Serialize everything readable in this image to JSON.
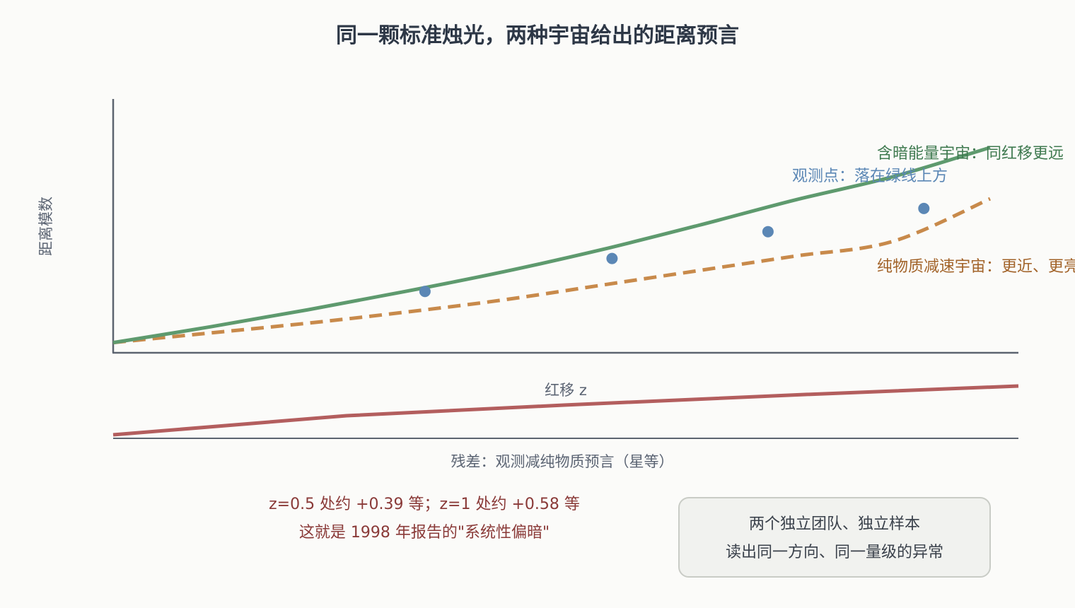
{
  "title": "同一颗标准烛光，两种宇宙给出的距离预言",
  "colors": {
    "background": "#fbfbf9",
    "axis": "#5c6470",
    "dark_energy": "#5e9a6e",
    "matter_only": "#c88a4b",
    "observed": "#5b87b5",
    "residual": "#b35e5e",
    "box_fill": "#f1f2ef",
    "box_border": "#c9ccc6"
  },
  "chart_data": [
    {
      "type": "line",
      "title": "同一颗标准烛光，两种宇宙给出的距离预言",
      "xlabel": "红移 z",
      "ylabel": "距离模数",
      "xlim": [
        0,
        1.125
      ],
      "ylim": [
        0,
        1.0
      ],
      "grid": false,
      "series": [
        {
          "key": "dark_energy",
          "x": [
            0,
            0.125,
            0.25,
            0.375,
            0.5,
            0.625,
            0.75,
            0.875,
            1.0,
            1.125
          ],
          "values": [
            0.03,
            0.095,
            0.165,
            0.24,
            0.32,
            0.41,
            0.51,
            0.615,
            0.71,
            0.83
          ],
          "style": "solid"
        },
        {
          "key": "matter_only",
          "x": [
            0,
            0.125,
            0.25,
            0.375,
            0.5,
            0.625,
            0.75,
            0.875,
            1.0,
            1.125
          ],
          "values": [
            0.03,
            0.07,
            0.11,
            0.155,
            0.205,
            0.265,
            0.325,
            0.385,
            0.445,
            0.62
          ],
          "style": "dashed"
        },
        {
          "key": "observed",
          "type": "scatter",
          "x": [
            0.4,
            0.64,
            0.84,
            1.04
          ],
          "values": [
            0.24,
            0.375,
            0.485,
            0.58
          ]
        }
      ],
      "annotations": [
        {
          "key": "dark_energy",
          "text": "含暗能量宇宙：同红移更远"
        },
        {
          "key": "observed",
          "text": "观测点：落在绿线上方"
        },
        {
          "key": "matter_only",
          "text": "纯物质减速宇宙：更近、更亮"
        }
      ]
    },
    {
      "type": "line",
      "xlabel": "残差：观测减纯物质预言（星等）",
      "xlim": [
        0,
        1.125
      ],
      "ylim": [
        0,
        1.0
      ],
      "series": [
        {
          "key": "residual",
          "x": [
            0,
            0.29,
            0.56,
            0.86,
            1.125
          ],
          "values": [
            0.03,
            0.3,
            0.45,
            0.6,
            0.72
          ]
        }
      ]
    }
  ],
  "residual_note": {
    "line1": "z=0.5 处约 +0.39 等；z=1 处约 +0.58 等",
    "line2": "这就是 1998 年报告的\"系统性偏暗\""
  },
  "info_box": {
    "line1": "两个独立团队、独立样本",
    "line2": "读出同一方向、同一量级的异常"
  }
}
